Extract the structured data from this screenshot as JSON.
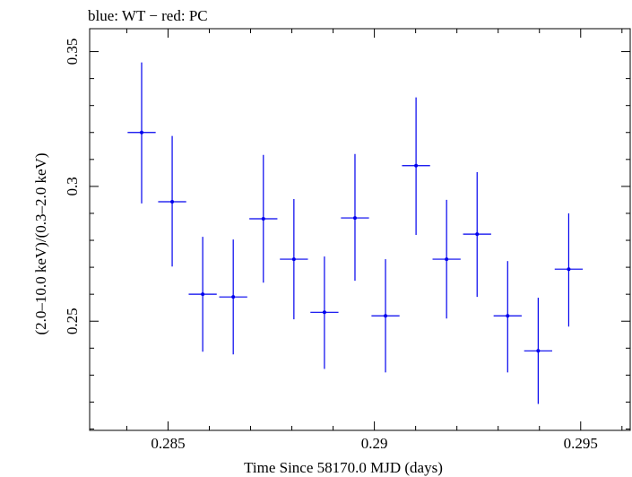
{
  "chart_data": {
    "type": "scatter",
    "title": "blue: WT − red: PC",
    "xlabel": "Time Since 58170.0 MJD (days)",
    "ylabel": "(2.0–10.0 keV)/(0.3–2.0 keV)",
    "xlim": [
      0.2831,
      0.2962
    ],
    "ylim": [
      0.2095,
      0.3585
    ],
    "xticks": [
      {
        "value": 0.285,
        "label": "0.285"
      },
      {
        "value": 0.29,
        "label": "0.29"
      },
      {
        "value": 0.295,
        "label": "0.295"
      }
    ],
    "yticks": [
      {
        "value": 0.25,
        "label": "0.25"
      },
      {
        "value": 0.3,
        "label": "0.3"
      },
      {
        "value": 0.35,
        "label": "0.35"
      }
    ],
    "grid": false,
    "color": "#0000ee",
    "series": [
      {
        "points": [
          {
            "x": 0.28436,
            "xerr": 0.00034,
            "y": 0.32,
            "ylo": 0.2937,
            "yhi": 0.346
          },
          {
            "x": 0.2851,
            "xerr": 0.00034,
            "y": 0.2943,
            "ylo": 0.2703,
            "yhi": 0.3187
          },
          {
            "x": 0.28584,
            "xerr": 0.00034,
            "y": 0.26,
            "ylo": 0.2387,
            "yhi": 0.2813
          },
          {
            "x": 0.28658,
            "xerr": 0.00034,
            "y": 0.259,
            "ylo": 0.2377,
            "yhi": 0.2803
          },
          {
            "x": 0.28731,
            "xerr": 0.00034,
            "y": 0.288,
            "ylo": 0.2643,
            "yhi": 0.3117
          },
          {
            "x": 0.28805,
            "xerr": 0.00034,
            "y": 0.273,
            "ylo": 0.2507,
            "yhi": 0.2953
          },
          {
            "x": 0.28879,
            "xerr": 0.00034,
            "y": 0.2533,
            "ylo": 0.2323,
            "yhi": 0.274
          },
          {
            "x": 0.28953,
            "xerr": 0.00034,
            "y": 0.2883,
            "ylo": 0.265,
            "yhi": 0.312
          },
          {
            "x": 0.29027,
            "xerr": 0.00034,
            "y": 0.252,
            "ylo": 0.231,
            "yhi": 0.273
          },
          {
            "x": 0.29101,
            "xerr": 0.00034,
            "y": 0.3077,
            "ylo": 0.282,
            "yhi": 0.333
          },
          {
            "x": 0.29175,
            "xerr": 0.00034,
            "y": 0.273,
            "ylo": 0.251,
            "yhi": 0.295
          },
          {
            "x": 0.29249,
            "xerr": 0.00034,
            "y": 0.2823,
            "ylo": 0.259,
            "yhi": 0.3053
          },
          {
            "x": 0.29323,
            "xerr": 0.00034,
            "y": 0.252,
            "ylo": 0.231,
            "yhi": 0.2723
          },
          {
            "x": 0.29397,
            "xerr": 0.00034,
            "y": 0.239,
            "ylo": 0.2193,
            "yhi": 0.2587
          },
          {
            "x": 0.29471,
            "xerr": 0.00034,
            "y": 0.2693,
            "ylo": 0.248,
            "yhi": 0.29
          }
        ]
      }
    ]
  }
}
